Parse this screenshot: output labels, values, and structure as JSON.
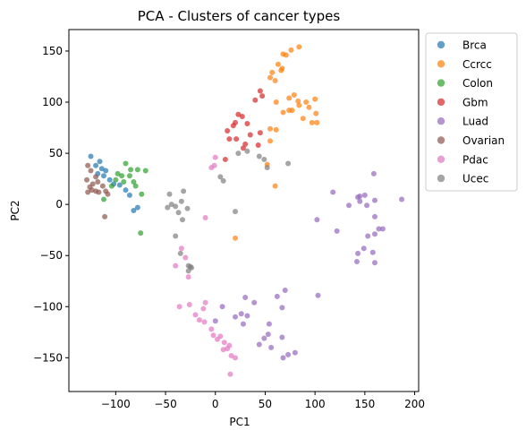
{
  "chart_data": {
    "type": "scatter",
    "title": "PCA - Clusters of cancer types",
    "xlabel": "PC1",
    "ylabel": "PC2",
    "xlim": [
      -147,
      204
    ],
    "ylim": [
      -183,
      171
    ],
    "xticks": [
      -100,
      -50,
      0,
      50,
      100,
      150,
      200
    ],
    "yticks": [
      -150,
      -100,
      -50,
      0,
      50,
      100,
      150
    ],
    "grid": false,
    "legend_position": "outside-top-right",
    "series": [
      {
        "name": "Brca",
        "color": "#1f77b4",
        "points": [
          [
            -125,
            47
          ],
          [
            -120,
            38
          ],
          [
            -118,
            30
          ],
          [
            -116,
            42
          ],
          [
            -114,
            35
          ],
          [
            -112,
            28
          ],
          [
            -110,
            33
          ],
          [
            -106,
            24
          ],
          [
            -102,
            20
          ],
          [
            -96,
            19
          ],
          [
            -90,
            14
          ],
          [
            -86,
            9
          ],
          [
            -82,
            -6
          ],
          [
            -78,
            -3
          ]
        ]
      },
      {
        "name": "Ccrcc",
        "color": "#ff7f0e",
        "points": [
          [
            84,
            154
          ],
          [
            76,
            151
          ],
          [
            71,
            146
          ],
          [
            68,
            147
          ],
          [
            63,
            137
          ],
          [
            67,
            133
          ],
          [
            66,
            131
          ],
          [
            57,
            129
          ],
          [
            55,
            124
          ],
          [
            60,
            121
          ],
          [
            79,
            107
          ],
          [
            74,
            104
          ],
          [
            100,
            103
          ],
          [
            83,
            101
          ],
          [
            61,
            100
          ],
          [
            91,
            100
          ],
          [
            84,
            97
          ],
          [
            77,
            92
          ],
          [
            74,
            92
          ],
          [
            94,
            95
          ],
          [
            68,
            90
          ],
          [
            88,
            84
          ],
          [
            97,
            80
          ],
          [
            102,
            80
          ],
          [
            101,
            89
          ],
          [
            55,
            74
          ],
          [
            61,
            73
          ],
          [
            55,
            62
          ],
          [
            52,
            39
          ],
          [
            60,
            18
          ],
          [
            20,
            -33
          ]
        ]
      },
      {
        "name": "Colon",
        "color": "#2ca02c",
        "points": [
          [
            -90,
            40
          ],
          [
            -85,
            34
          ],
          [
            -78,
            34
          ],
          [
            -70,
            33
          ],
          [
            -98,
            30
          ],
          [
            -94,
            28
          ],
          [
            -100,
            24
          ],
          [
            -86,
            28
          ],
          [
            -82,
            22
          ],
          [
            -80,
            18
          ],
          [
            -104,
            18
          ],
          [
            -92,
            22
          ],
          [
            -74,
            10
          ],
          [
            -112,
            5
          ],
          [
            -75,
            -28
          ]
        ]
      },
      {
        "name": "Gbm",
        "color": "#d62728",
        "points": [
          [
            45,
            111
          ],
          [
            40,
            102
          ],
          [
            47,
            106
          ],
          [
            23,
            88
          ],
          [
            27,
            86
          ],
          [
            20,
            80
          ],
          [
            18,
            77
          ],
          [
            32,
            79
          ],
          [
            35,
            68
          ],
          [
            45,
            70
          ],
          [
            12,
            72
          ],
          [
            14,
            64
          ],
          [
            21,
            64
          ],
          [
            30,
            59
          ],
          [
            43,
            58
          ],
          [
            28,
            55
          ],
          [
            10,
            44
          ]
        ]
      },
      {
        "name": "Luad",
        "color": "#9467bd",
        "points": [
          [
            145,
            8
          ],
          [
            150,
            9
          ],
          [
            143,
            7
          ],
          [
            145,
            3
          ],
          [
            160,
            4
          ],
          [
            187,
            5
          ],
          [
            118,
            12
          ],
          [
            134,
            -1
          ],
          [
            152,
            -1
          ],
          [
            160,
            -12
          ],
          [
            168,
            -24
          ],
          [
            164,
            -24
          ],
          [
            153,
            -31
          ],
          [
            160,
            -29
          ],
          [
            122,
            -26
          ],
          [
            149,
            -43
          ],
          [
            143,
            -48
          ],
          [
            158,
            -47
          ],
          [
            142,
            -56
          ],
          [
            160,
            -57
          ],
          [
            103,
            -89
          ],
          [
            70,
            -84
          ],
          [
            62,
            -90
          ],
          [
            67,
            -101
          ],
          [
            54,
            -117
          ],
          [
            53,
            -127
          ],
          [
            67,
            -130
          ],
          [
            80,
            -145
          ],
          [
            68,
            -150
          ],
          [
            56,
            -140
          ],
          [
            49,
            -131
          ],
          [
            44,
            -137
          ],
          [
            73,
            -147
          ],
          [
            26,
            -107
          ],
          [
            28,
            -117
          ],
          [
            32,
            -109
          ],
          [
            20,
            -110
          ],
          [
            39,
            -96
          ],
          [
            30,
            -91
          ],
          [
            7,
            -100
          ],
          [
            0,
            -114
          ],
          [
            102,
            -15
          ],
          [
            159,
            30
          ]
        ]
      },
      {
        "name": "Ovarian",
        "color": "#8c564b",
        "points": [
          [
            -128,
            38
          ],
          [
            -125,
            33
          ],
          [
            -129,
            24
          ],
          [
            -123,
            20
          ],
          [
            -120,
            27
          ],
          [
            -118,
            22
          ],
          [
            -126,
            17
          ],
          [
            -120,
            13
          ],
          [
            -128,
            12
          ],
          [
            -124,
            14
          ],
          [
            -113,
            18
          ],
          [
            -117,
            12
          ],
          [
            -110,
            13
          ],
          [
            -108,
            10
          ],
          [
            -111,
            -12
          ]
        ]
      },
      {
        "name": "Pdac",
        "color": "#e377c2",
        "points": [
          [
            0,
            46
          ],
          [
            -1,
            38
          ],
          [
            -4,
            36
          ],
          [
            -30,
            -52
          ],
          [
            -34,
            -43
          ],
          [
            -40,
            -60
          ],
          [
            -27,
            -71
          ],
          [
            -36,
            -100
          ],
          [
            -26,
            -98
          ],
          [
            -12,
            -102
          ],
          [
            -10,
            -96
          ],
          [
            -16,
            -113
          ],
          [
            -11,
            -115
          ],
          [
            -4,
            -122
          ],
          [
            -2,
            -128
          ],
          [
            2,
            -132
          ],
          [
            5,
            -129
          ],
          [
            9,
            -135
          ],
          [
            14,
            -138
          ],
          [
            8,
            -142
          ],
          [
            16,
            -148
          ],
          [
            20,
            -150
          ],
          [
            12,
            -141
          ],
          [
            -10,
            -13
          ],
          [
            -20,
            -108
          ],
          [
            15,
            -166
          ]
        ]
      },
      {
        "name": "Ucec",
        "color": "#7f7f7f",
        "points": [
          [
            -32,
            13
          ],
          [
            -46,
            10
          ],
          [
            -34,
            3
          ],
          [
            -44,
            0
          ],
          [
            -40,
            -2
          ],
          [
            -48,
            -3
          ],
          [
            -37,
            -8
          ],
          [
            -28,
            -4
          ],
          [
            -33,
            -15
          ],
          [
            -40,
            -31
          ],
          [
            -35,
            -48
          ],
          [
            -27,
            -60
          ],
          [
            -24,
            -62
          ],
          [
            -27,
            -65
          ],
          [
            -25,
            -61
          ],
          [
            23,
            50
          ],
          [
            32,
            52
          ],
          [
            44,
            47
          ],
          [
            49,
            44
          ],
          [
            52,
            36
          ],
          [
            73,
            40
          ],
          [
            8,
            23
          ],
          [
            5,
            27
          ],
          [
            20,
            -7
          ]
        ]
      }
    ]
  }
}
